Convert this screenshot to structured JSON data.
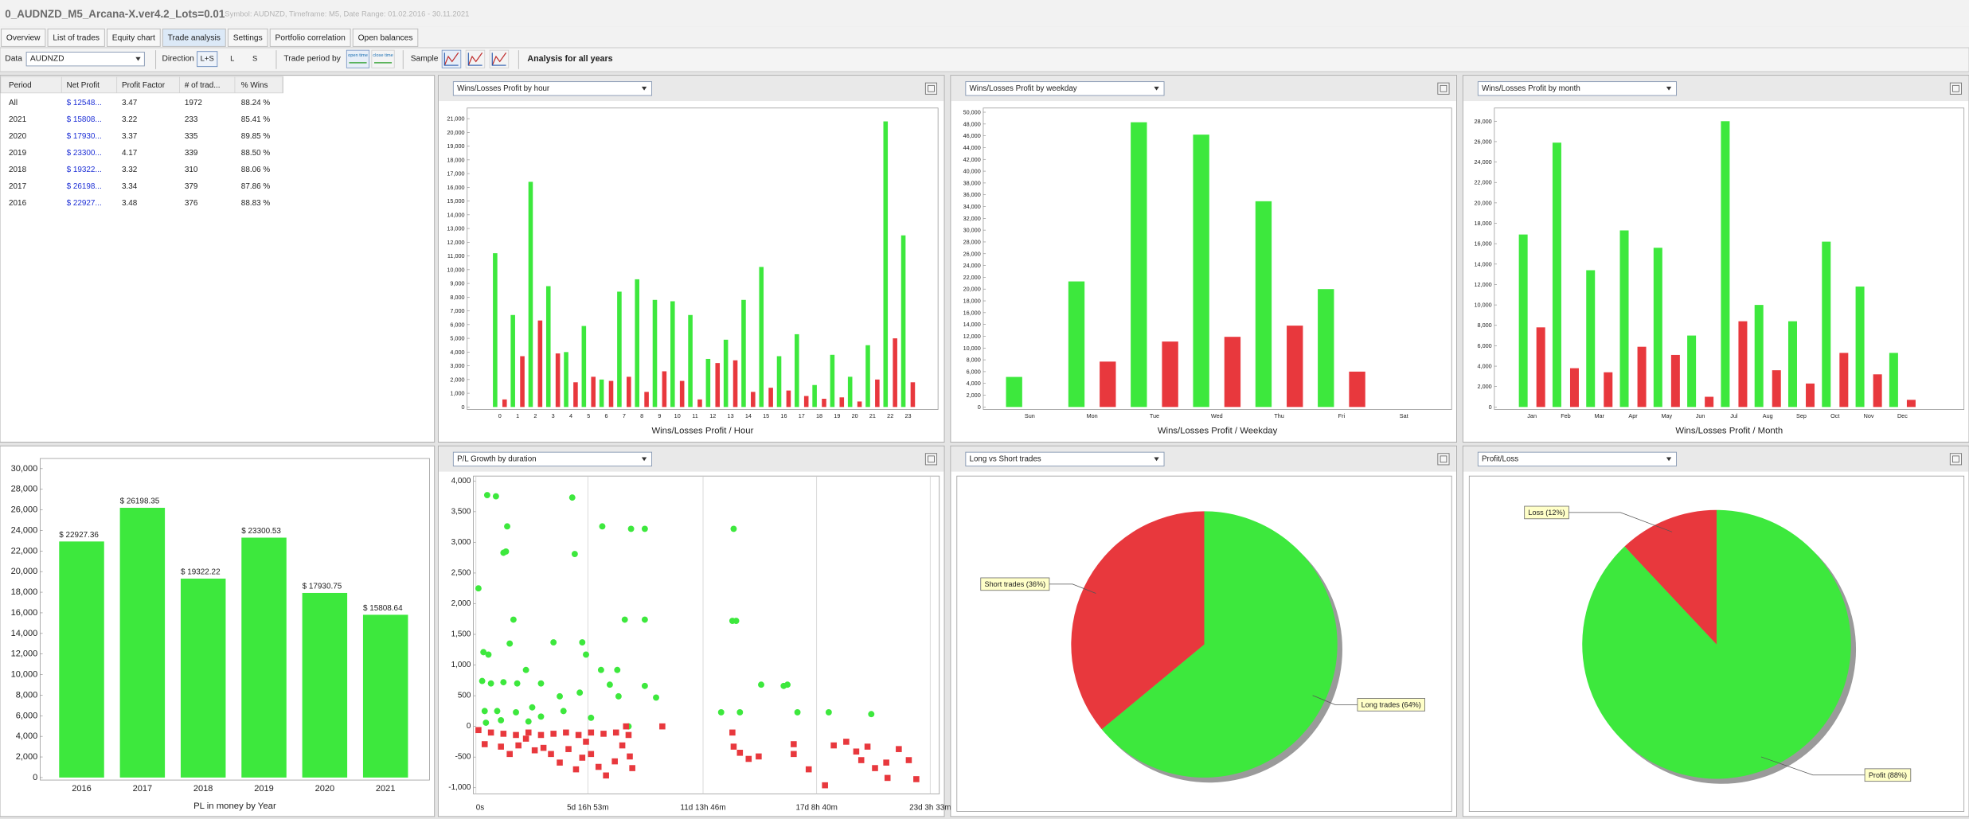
{
  "window": {
    "title": "0_AUDNZD_M5_Arcana-X.ver4.2_Lots=0.01",
    "subtitle": "Symbol: AUDNZD, Timeframe: M5, Date Range: 01.02.2016 - 30.11.2021"
  },
  "tabs": [
    "Overview",
    "List of trades",
    "Equity chart",
    "Trade analysis",
    "Settings",
    "Portfolio correlation",
    "Open balances"
  ],
  "active_tab": 3,
  "toolbar": {
    "data_label": "Data",
    "symbol": "AUDNZD",
    "direction_label": "Direction",
    "directions": [
      "L+S",
      "L",
      "S"
    ],
    "period_label": "Trade period by",
    "period_options": [
      "open time",
      "close time"
    ],
    "sample_label": "Sample",
    "analysis": "Analysis for all years"
  },
  "table": {
    "headers": [
      "Period",
      "Net Profit",
      "Profit Factor",
      "# of trad...",
      "% Wins"
    ],
    "rows": [
      [
        "All",
        "$ 12548...",
        "3.47",
        "1972",
        "88.24 %"
      ],
      [
        "2021",
        "$ 15808...",
        "3.22",
        "233",
        "85.41 %"
      ],
      [
        "2020",
        "$ 17930...",
        "3.37",
        "335",
        "89.85 %"
      ],
      [
        "2019",
        "$ 23300...",
        "4.17",
        "339",
        "88.50 %"
      ],
      [
        "2018",
        "$ 19322...",
        "3.32",
        "310",
        "88.06 %"
      ],
      [
        "2017",
        "$ 26198...",
        "3.34",
        "379",
        "87.86 %"
      ],
      [
        "2016",
        "$ 22927...",
        "3.48",
        "376",
        "88.83 %"
      ]
    ]
  },
  "chart_data": [
    {
      "type": "bar",
      "title": "Wins/Losses Profit by hour",
      "xlabel": "Wins/Losses Profit / Hour",
      "categories": [
        "0",
        "1",
        "2",
        "3",
        "4",
        "5",
        "6",
        "7",
        "8",
        "9",
        "10",
        "11",
        "12",
        "13",
        "14",
        "15",
        "16",
        "17",
        "18",
        "19",
        "20",
        "21",
        "22",
        "23"
      ],
      "series": [
        {
          "color": "#3de83d",
          "values": [
            11200,
            6700,
            16400,
            8800,
            4000,
            5900,
            2000,
            8400,
            9300,
            7800,
            7700,
            6700,
            3500,
            4900,
            7800,
            10200,
            3700,
            5300,
            1600,
            3800,
            2200,
            4500,
            20800,
            12500
          ]
        },
        {
          "color": "#e8383d",
          "values": [
            550,
            3700,
            6300,
            3900,
            1800,
            2200,
            1900,
            2200,
            1100,
            2600,
            1900,
            550,
            3200,
            3400,
            1100,
            1400,
            1200,
            800,
            600,
            700,
            400,
            2000,
            5000,
            1800
          ]
        }
      ],
      "ylim": [
        0,
        21500
      ],
      "yticks": [
        0,
        {
          "value": 1000,
          "label": "1,000"
        },
        {
          "value": 2000,
          "label": "2,000"
        },
        {
          "value": 3000,
          "label": "3,000"
        },
        {
          "value": 4000,
          "label": "4,000"
        },
        {
          "value": 5000,
          "label": "5,000"
        },
        {
          "value": 6000,
          "label": "6,000"
        },
        {
          "value": 7000,
          "label": "7,000"
        },
        {
          "value": 8000,
          "label": "8,000"
        },
        {
          "value": 9000,
          "label": "9,000"
        },
        {
          "value": 10000,
          "label": "10,000"
        },
        {
          "value": 11000,
          "label": "11,000"
        },
        {
          "value": 12000,
          "label": "12,000"
        },
        {
          "value": 13000,
          "label": "13,000"
        },
        {
          "value": 14000,
          "label": "14,000"
        },
        {
          "value": 15000,
          "label": "15,000"
        },
        {
          "value": 16000,
          "label": "16,000"
        },
        {
          "value": 17000,
          "label": "17,000"
        },
        {
          "value": 18000,
          "label": "18,000"
        },
        {
          "value": 19000,
          "label": "19,000"
        },
        {
          "value": 20000,
          "label": "20,000"
        },
        {
          "value": 21000,
          "label": "21,000"
        }
      ]
    },
    {
      "type": "bar",
      "title": "Wins/Losses Profit by weekday",
      "xlabel": "Wins/Losses Profit / Weekday",
      "categories": [
        "Sun",
        "Mon",
        "Tue",
        "Wed",
        "Thu",
        "Fri",
        "Sat"
      ],
      "series": [
        {
          "color": "#3de83d",
          "values": [
            5100,
            21300,
            48300,
            46200,
            34900,
            20000,
            0
          ]
        },
        {
          "color": "#e8383d",
          "values": [
            0,
            7700,
            11100,
            11900,
            13800,
            6000,
            0
          ]
        }
      ],
      "ylim": [
        0,
        50500
      ],
      "yticks": [
        0,
        {
          "value": 2000,
          "label": "2,000"
        },
        {
          "value": 4000,
          "label": "4,000"
        },
        {
          "value": 6000,
          "label": "6,000"
        },
        {
          "value": 8000,
          "label": "8,000"
        },
        {
          "value": 10000,
          "label": "10,000"
        },
        {
          "value": 12000,
          "label": "12,000"
        },
        {
          "value": 14000,
          "label": "14,000"
        },
        {
          "value": 16000,
          "label": "16,000"
        },
        {
          "value": 18000,
          "label": "18,000"
        },
        {
          "value": 20000,
          "label": "20,000"
        },
        {
          "value": 22000,
          "label": "22,000"
        },
        {
          "value": 24000,
          "label": "24,000"
        },
        {
          "value": 26000,
          "label": "26,000"
        },
        {
          "value": 28000,
          "label": "28,000"
        },
        {
          "value": 30000,
          "label": "30,000"
        },
        {
          "value": 32000,
          "label": "32,000"
        },
        {
          "value": 34000,
          "label": "34,000"
        },
        {
          "value": 36000,
          "label": "36,000"
        },
        {
          "value": 38000,
          "label": "38,000"
        },
        {
          "value": 40000,
          "label": "40,000"
        },
        {
          "value": 42000,
          "label": "42,000"
        },
        {
          "value": 44000,
          "label": "44,000"
        },
        {
          "value": 46000,
          "label": "46,000"
        },
        {
          "value": 48000,
          "label": "48,000"
        },
        {
          "value": 50000,
          "label": "50,000"
        }
      ]
    },
    {
      "type": "bar",
      "title": "Wins/Losses Profit by month",
      "xlabel": "Wins/Losses Profit / Month",
      "categories": [
        "Jan",
        "Feb",
        "Mar",
        "Apr",
        "May",
        "Jun",
        "Jul",
        "Aug",
        "Sep",
        "Oct",
        "Nov",
        "Dec"
      ],
      "series": [
        {
          "color": "#3de83d",
          "values": [
            16900,
            25900,
            13400,
            17300,
            15600,
            7000,
            28000,
            10000,
            8400,
            16200,
            11800,
            5300
          ]
        },
        {
          "color": "#e8383d",
          "values": [
            7800,
            3800,
            3400,
            5900,
            5100,
            1000,
            8400,
            3600,
            2300,
            5300,
            3200,
            700
          ]
        }
      ],
      "ylim": [
        0,
        28800
      ],
      "yticks": [
        0,
        {
          "value": 2000,
          "label": "2,000"
        },
        {
          "value": 4000,
          "label": "4,000"
        },
        {
          "value": 6000,
          "label": "6,000"
        },
        {
          "value": 8000,
          "label": "8,000"
        },
        {
          "value": 10000,
          "label": "10,000"
        },
        {
          "value": 12000,
          "label": "12,000"
        },
        {
          "value": 14000,
          "label": "14,000"
        },
        {
          "value": 16000,
          "label": "16,000"
        },
        {
          "value": 18000,
          "label": "18,000"
        },
        {
          "value": 20000,
          "label": "20,000"
        },
        {
          "value": 22000,
          "label": "22,000"
        },
        {
          "value": 24000,
          "label": "24,000"
        },
        {
          "value": 26000,
          "label": "26,000"
        },
        {
          "value": 28000,
          "label": "28,000"
        }
      ]
    },
    {
      "type": "bar",
      "xlabel": "PL in money by Year",
      "categories": [
        "2016",
        "2017",
        "2018",
        "2019",
        "2020",
        "2021"
      ],
      "series": [
        {
          "color": "#3de83d",
          "values": [
            22927.36,
            26198.35,
            19322.22,
            23300.53,
            17930.75,
            15808.64
          ],
          "value_labels": [
            "$ 22927.36",
            "$ 26198.35",
            "$ 19322.22",
            "$ 23300.53",
            "$ 17930.75",
            "$ 15808.64"
          ]
        }
      ],
      "ylim": [
        0,
        30500
      ],
      "yticks": [
        0,
        {
          "value": 2000,
          "label": "2,000"
        },
        {
          "value": 4000,
          "label": "4,000"
        },
        {
          "value": 6000,
          "label": "6,000"
        },
        {
          "value": 8000,
          "label": "8,000"
        },
        {
          "value": 10000,
          "label": "10,000"
        },
        {
          "value": 12000,
          "label": "12,000"
        },
        {
          "value": 14000,
          "label": "14,000"
        },
        {
          "value": 16000,
          "label": "16,000"
        },
        {
          "value": 18000,
          "label": "18,000"
        },
        {
          "value": 20000,
          "label": "20,000"
        },
        {
          "value": 22000,
          "label": "22,000"
        },
        {
          "value": 24000,
          "label": "24,000"
        },
        {
          "value": 26000,
          "label": "26,000"
        },
        {
          "value": 28000,
          "label": "28,000"
        },
        {
          "value": 30000,
          "label": "30,000"
        }
      ]
    },
    {
      "type": "scatter",
      "title": "P/L Growth by duration",
      "xlim": [
        0,
        34000
      ],
      "ylim": [
        -1100,
        4080
      ],
      "xgrid": true,
      "xticks": [
        {
          "value": 0,
          "label": "0s"
        },
        {
          "value": 8213,
          "label": "5d 16h 53m"
        },
        {
          "value": 16666,
          "label": "11d 13h 46m"
        },
        {
          "value": 25000,
          "label": "17d 8h 40m"
        },
        {
          "value": 33333,
          "label": "23d 3h 33m"
        }
      ],
      "yticks": [
        {
          "value": -1000,
          "label": "-1,000"
        },
        -500,
        0,
        500,
        {
          "value": 1000,
          "label": "1,000"
        },
        {
          "value": 1500,
          "label": "1,500"
        },
        {
          "value": 2000,
          "label": "2,000"
        },
        {
          "value": 2500,
          "label": "2,500"
        },
        {
          "value": 3000,
          "label": "3,000"
        },
        {
          "value": 3500,
          "label": "3,500"
        },
        {
          "value": 4000,
          "label": "4,000"
        }
      ],
      "series": [
        {
          "color": "#3de83d",
          "marker": "circle",
          "x": [
            826,
            1469,
            2295,
            2020,
            2203,
            2754,
            7069,
            7252,
            9272,
            11383,
            12393,
            18911,
            551,
            918,
            2479,
            3672,
            4774,
            5692,
            8078,
            7803,
            9180,
            10373,
            10924,
            12393,
            18819,
            19094,
            459,
            1102,
            2020,
            3029,
            4131,
            6151,
            7619,
            9823,
            10465,
            12393,
            13219,
            20930,
            22583,
            22858,
            17993,
            19370,
            23593,
            25888,
            29009,
            184,
            643,
            1561,
            2938,
            4774,
            6426,
            8446,
            11200,
            734,
            1836,
            3856
          ],
          "values": [
            3770,
            3750,
            3260,
            2830,
            2850,
            1740,
            3730,
            2810,
            3260,
            3220,
            3220,
            3220,
            1210,
            1170,
            1350,
            920,
            700,
            1370,
            1170,
            1370,
            920,
            920,
            1740,
            1740,
            1720,
            1720,
            740,
            700,
            720,
            700,
            310,
            490,
            550,
            680,
            490,
            660,
            470,
            680,
            660,
            680,
            230,
            230,
            230,
            230,
            200,
            2250,
            250,
            250,
            230,
            160,
            250,
            140,
            0,
            60,
            100,
            80
          ]
        },
        {
          "color": "#e8383d",
          "marker": "square",
          "x": [
            184,
            1102,
            2020,
            2938,
            3856,
            4774,
            5692,
            6610,
            7528,
            8446,
            9364,
            10282,
            11200,
            643,
            1836,
            3121,
            4315,
            5508,
            6151,
            6793,
            7344,
            7803,
            8446,
            8996,
            9547,
            10190,
            10741,
            11291,
            11475,
            13678,
            11016,
            18819,
            18911,
            19370,
            20012,
            20747,
            23317,
            23317,
            24419,
            25613,
            26255,
            27173,
            27907,
            28274,
            28733,
            29284,
            30110,
            30202,
            31028,
            31763,
            32314,
            2479,
            3672,
            4957,
            8078
          ],
          "values": [
            -60,
            -100,
            -120,
            -140,
            -100,
            -140,
            -120,
            -100,
            -140,
            -100,
            -120,
            -100,
            -140,
            -290,
            -330,
            -310,
            -390,
            -450,
            -590,
            -370,
            -700,
            -510,
            -450,
            -660,
            -800,
            -570,
            -310,
            -490,
            -680,
            0,
            0,
            -100,
            -330,
            -430,
            -530,
            -490,
            -290,
            -450,
            -700,
            -960,
            -310,
            -250,
            -410,
            -550,
            -330,
            -680,
            -590,
            -840,
            -370,
            -550,
            -860,
            -450,
            -200,
            -350,
            -250
          ]
        }
      ]
    },
    {
      "type": "pie",
      "title": "Long vs Short trades",
      "labels": [
        "Long trades (64%)",
        "Short trades (36%)"
      ],
      "values": [
        64,
        36
      ],
      "colors": [
        "#3de83d",
        "#e8383d"
      ]
    },
    {
      "type": "pie",
      "title": "Profit/Loss",
      "labels": [
        "Profit (88%)",
        "Loss (12%)"
      ],
      "values": [
        88,
        12
      ],
      "colors": [
        "#3de83d",
        "#e8383d"
      ]
    }
  ]
}
